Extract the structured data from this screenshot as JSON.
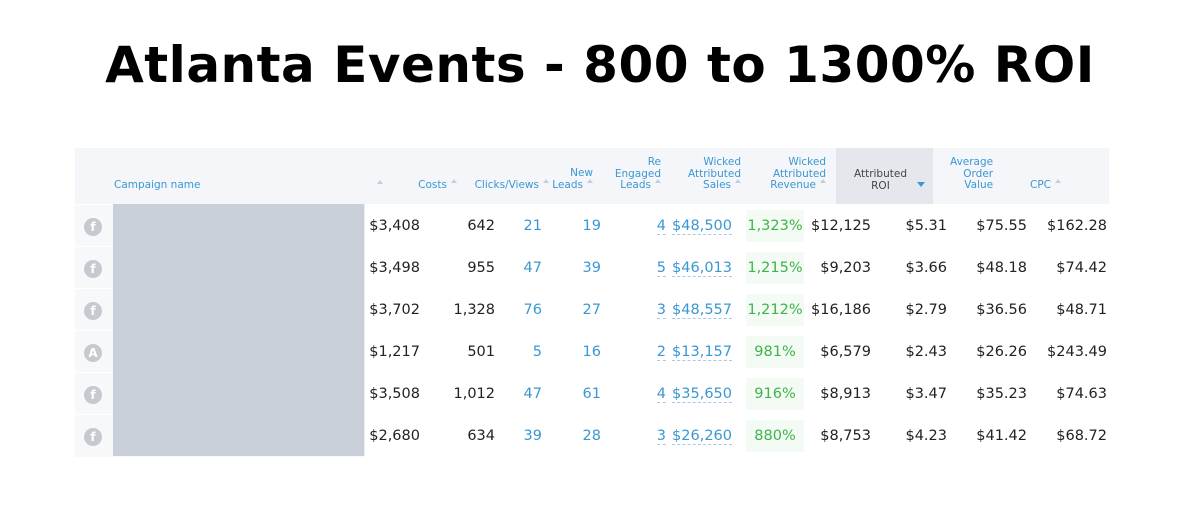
{
  "title": "Atlanta Events - 800 to 1300% ROI",
  "header": {
    "campaign_name": "Campaign name",
    "costs": "Costs",
    "clicks_views": "Clicks/Views",
    "new_leads_1": "New",
    "new_leads_2": "Leads",
    "re_engaged_1": "Re",
    "re_engaged_2": "Engaged",
    "re_engaged_3": "Leads",
    "wicked_sales_1": "Wicked",
    "wicked_sales_2": "Attributed",
    "wicked_sales_3": "Sales",
    "wicked_rev_1": "Wicked",
    "wicked_rev_2": "Attributed",
    "wicked_rev_3": "Revenue",
    "attr_roi_1": "Attributed",
    "attr_roi_2": "ROI",
    "aov_1": "Average",
    "aov_2": "Order",
    "aov_3": "Value",
    "cpc": "CPC"
  },
  "rows": [
    {
      "icon": "f",
      "costs": "$3,408",
      "clicks": "642",
      "views": "21",
      "new_leads": "19",
      "re_engaged": "4",
      "wicked_sales": "$48,500",
      "roi": "1,323%",
      "revenue": "$12,125",
      "cpc_a": "$5.31",
      "aov": "$75.55",
      "cpc_b": "$162.28"
    },
    {
      "icon": "f",
      "costs": "$3,498",
      "clicks": "955",
      "views": "47",
      "new_leads": "39",
      "re_engaged": "5",
      "wicked_sales": "$46,013",
      "roi": "1,215%",
      "revenue": "$9,203",
      "cpc_a": "$3.66",
      "aov": "$48.18",
      "cpc_b": "$74.42"
    },
    {
      "icon": "f",
      "costs": "$3,702",
      "clicks": "1,328",
      "views": "76",
      "new_leads": "27",
      "re_engaged": "3",
      "wicked_sales": "$48,557",
      "roi": "1,212%",
      "revenue": "$16,186",
      "cpc_a": "$2.79",
      "aov": "$36.56",
      "cpc_b": "$48.71"
    },
    {
      "icon": "A",
      "costs": "$1,217",
      "clicks": "501",
      "views": "5",
      "new_leads": "16",
      "re_engaged": "2",
      "wicked_sales": "$13,157",
      "roi": "981%",
      "revenue": "$6,579",
      "cpc_a": "$2.43",
      "aov": "$26.26",
      "cpc_b": "$243.49"
    },
    {
      "icon": "f",
      "costs": "$3,508",
      "clicks": "1,012",
      "views": "47",
      "new_leads": "61",
      "re_engaged": "4",
      "wicked_sales": "$35,650",
      "roi": "916%",
      "revenue": "$8,913",
      "cpc_a": "$3.47",
      "aov": "$35.23",
      "cpc_b": "$74.63"
    },
    {
      "icon": "f",
      "costs": "$2,680",
      "clicks": "634",
      "views": "39",
      "new_leads": "28",
      "re_engaged": "3",
      "wicked_sales": "$26,260",
      "roi": "880%",
      "revenue": "$8,753",
      "cpc_a": "$4.23",
      "aov": "$41.42",
      "cpc_b": "$68.72"
    }
  ]
}
